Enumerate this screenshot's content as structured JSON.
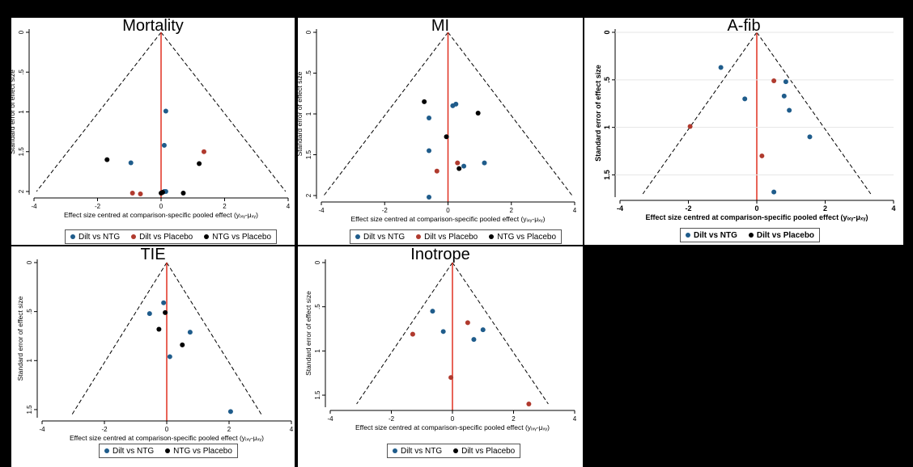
{
  "colors": {
    "dilt_vs_ntg": "#1f5c8b",
    "dilt_vs_placebo": "#b03a2e",
    "ntg_vs_placebo": "#000000",
    "zero_line": "#e03020",
    "funnel": "#000000"
  },
  "chart_data": [
    {
      "type": "scatter",
      "title": "Mortality",
      "xlabel": "Effect size centred at comparison-specific pooled effect (yᵢₓᵧ-μₓᵧ)",
      "ylabel": "Standard error of effect size",
      "xlim": [
        -4,
        4
      ],
      "ylim": [
        0,
        2
      ],
      "y_reversed": true,
      "xticks": [
        "-4",
        "-2",
        "0",
        "2",
        "4"
      ],
      "yticks": [
        "0",
        ".5",
        "1",
        "1.5",
        "2"
      ],
      "legend_position": "bottom",
      "series": [
        {
          "name": "Dilt vs NTG",
          "points": [
            [
              0.15,
              0.99
            ],
            [
              0.1,
              1.42
            ],
            [
              -0.95,
              1.64
            ],
            [
              0.15,
              2.0
            ],
            [
              0.1,
              2.0
            ]
          ]
        },
        {
          "name": "Dilt vs Placebo",
          "points": [
            [
              1.35,
              1.5
            ],
            [
              -0.9,
              2.02
            ],
            [
              -0.65,
              2.03
            ]
          ]
        },
        {
          "name": "NTG vs Placebo",
          "points": [
            [
              -1.7,
              1.6
            ],
            [
              1.2,
              1.65
            ],
            [
              0.7,
              2.02
            ],
            [
              0.05,
              2.01
            ],
            [
              0.0,
              2.02
            ]
          ]
        }
      ]
    },
    {
      "type": "scatter",
      "title": "MI",
      "xlabel": "Effect size centred at comparison-specific pooled effect (yᵢₓᵧ-μₓᵧ)",
      "ylabel": "Standard error of effect size",
      "xlim": [
        -4,
        4
      ],
      "ylim": [
        0,
        2
      ],
      "y_reversed": true,
      "xticks": [
        "-4",
        "-2",
        "0",
        "2",
        "4"
      ],
      "yticks": [
        "0",
        ".5",
        "1",
        "1.5",
        "2"
      ],
      "legend_position": "bottom",
      "series": [
        {
          "name": "Dilt vs NTG",
          "points": [
            [
              0.25,
              0.88
            ],
            [
              0.15,
              0.9
            ],
            [
              -0.6,
              1.05
            ],
            [
              -0.6,
              1.45
            ],
            [
              0.5,
              1.64
            ],
            [
              1.15,
              1.6
            ],
            [
              -0.6,
              2.02
            ]
          ]
        },
        {
          "name": "Dilt vs Placebo",
          "points": [
            [
              0.3,
              1.6
            ],
            [
              -0.35,
              1.7
            ]
          ]
        },
        {
          "name": "NTG vs Placebo",
          "points": [
            [
              -0.75,
              0.85
            ],
            [
              0.95,
              0.99
            ],
            [
              -0.05,
              1.28
            ],
            [
              0.35,
              1.67
            ]
          ]
        }
      ]
    },
    {
      "type": "scatter",
      "title": "A-fib",
      "xlabel": "Effect size centred at comparison-specific pooled effect (yᵢₓᵧ-μₓᵧ)",
      "ylabel": "Standard error of effect size",
      "xlim": [
        -4,
        4
      ],
      "ylim": [
        0,
        1.7
      ],
      "y_reversed": true,
      "xticks": [
        "-4",
        "-2",
        "0",
        "2",
        "4"
      ],
      "yticks": [
        "0",
        ".5",
        "1",
        "1.5"
      ],
      "legend_position": "bottom",
      "series": [
        {
          "name": "Dilt vs NTG",
          "points": [
            [
              -1.05,
              0.37
            ],
            [
              0.85,
              0.52
            ],
            [
              0.8,
              0.67
            ],
            [
              -0.35,
              0.7
            ],
            [
              0.95,
              0.82
            ],
            [
              1.55,
              1.1
            ],
            [
              0.5,
              1.68
            ]
          ]
        },
        {
          "name": "Dilt vs Placebo",
          "points": [
            [
              0.5,
              0.51
            ],
            [
              -1.95,
              0.99
            ],
            [
              0.15,
              1.3
            ]
          ]
        }
      ]
    },
    {
      "type": "scatter",
      "title": "TIE",
      "xlabel": "Effect size centred at comparison-specific pooled effect (yᵢₓᵧ-μₓᵧ)",
      "ylabel": "Standard error of effect size",
      "xlim": [
        -4,
        4
      ],
      "ylim": [
        0,
        1.55
      ],
      "y_reversed": true,
      "xticks": [
        "-4",
        "-2",
        "0",
        "2",
        "4"
      ],
      "yticks": [
        "0",
        ".5",
        "1",
        "1.5"
      ],
      "legend_position": "bottom",
      "series": [
        {
          "name": "Dilt vs NTG",
          "points": [
            [
              -0.1,
              0.41
            ],
            [
              -0.55,
              0.52
            ],
            [
              0.75,
              0.71
            ],
            [
              0.1,
              0.96
            ],
            [
              2.05,
              1.52
            ]
          ]
        },
        {
          "name": "NTG vs Placebo",
          "points": [
            [
              -0.05,
              0.51
            ],
            [
              -0.25,
              0.68
            ],
            [
              0.5,
              0.84
            ]
          ]
        }
      ]
    },
    {
      "type": "scatter",
      "title": "Inotrope",
      "xlabel": "Effect size centred at comparison-specific pooled effect (yᵢₓᵧ-μₓᵧ)",
      "ylabel": "Standard error of effect size",
      "xlim": [
        -4,
        4
      ],
      "ylim": [
        0,
        1.6
      ],
      "y_reversed": true,
      "xticks": [
        "-4",
        "-2",
        "0",
        "2",
        "4"
      ],
      "yticks": [
        "0",
        ".5",
        "1",
        "1.5"
      ],
      "legend_position": "bottom",
      "series": [
        {
          "name": "Dilt vs NTG",
          "points": [
            [
              -0.65,
              0.55
            ],
            [
              1.0,
              0.76
            ],
            [
              -0.3,
              0.78
            ],
            [
              0.7,
              0.87
            ]
          ]
        },
        {
          "name": "Dilt vs Placebo",
          "points": [
            [
              0.5,
              0.68
            ],
            [
              -1.3,
              0.81
            ],
            [
              -0.05,
              1.3
            ],
            [
              2.5,
              1.6
            ]
          ]
        }
      ]
    }
  ]
}
